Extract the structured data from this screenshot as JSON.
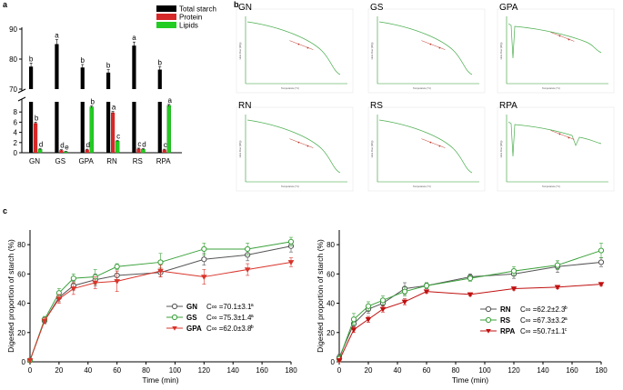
{
  "panel_labels": {
    "a": "a",
    "b": "b",
    "c": "c"
  },
  "colors": {
    "black": "#000000",
    "red": "#d62828",
    "green": "#22cc22",
    "dsc": "#4caf50",
    "dsc_fit": "#c0392b",
    "grey_line": "#555555",
    "red_curve": "#d9342b",
    "green_curve": "#3aa13a",
    "darkred_curve": "#c01010"
  },
  "chart_data": [
    {
      "id": "panel-a",
      "type": "bar",
      "title": "",
      "categories": [
        "GN",
        "GS",
        "GPA",
        "RN",
        "RS",
        "RPA"
      ],
      "series": [
        {
          "name": "Total starch",
          "color": "#000000",
          "values": [
            77.5,
            85.0,
            77.2,
            75.5,
            84.5,
            76.5
          ],
          "errors": [
            1.2,
            1.5,
            1.0,
            1.0,
            1.2,
            1.0
          ],
          "letters": [
            "b",
            "a",
            "b",
            "b",
            "a",
            "b"
          ]
        },
        {
          "name": "Protein",
          "color": "#d62828",
          "values": [
            5.8,
            0.5,
            0.6,
            7.9,
            0.8,
            0.6
          ],
          "errors": [
            0.2,
            0.1,
            0.1,
            0.2,
            0.1,
            0.1
          ],
          "letters": [
            "b",
            "d",
            "d",
            "a",
            "c",
            "c"
          ]
        },
        {
          "name": "Lipids",
          "color": "#22cc22",
          "values": [
            0.7,
            0.2,
            9.0,
            2.3,
            0.7,
            9.3
          ],
          "errors": [
            0.1,
            0.05,
            0.2,
            0.1,
            0.1,
            0.2
          ],
          "letters": [
            "d",
            "e",
            "b",
            "c",
            "d",
            "a"
          ]
        }
      ],
      "axis_breaks": {
        "lower_range": [
          0,
          10
        ],
        "upper_range": [
          70,
          90
        ]
      },
      "yticks_lower": [
        0,
        2,
        4,
        6,
        8
      ],
      "yticks_upper": [
        70,
        80,
        90
      ],
      "legend_position": "top-right"
    },
    {
      "id": "panel-b",
      "type": "line",
      "description_type": "dsc_thumbnails",
      "thumbnails": [
        {
          "label": "GN",
          "shape": "smooth"
        },
        {
          "label": "GS",
          "shape": "smooth"
        },
        {
          "label": "GPA",
          "shape": "sharp-peak"
        },
        {
          "label": "RN",
          "shape": "smooth"
        },
        {
          "label": "RS",
          "shape": "smooth"
        },
        {
          "label": "RPA",
          "shape": "double-peak"
        }
      ],
      "xlabel": "Temperature (°C)",
      "ylabel": "Heat Flow (W/g)"
    },
    {
      "id": "panel-c-left",
      "type": "line",
      "xlabel": "Time (min)",
      "ylabel": "Digested proportion of starch (%)",
      "xlim": [
        0,
        180
      ],
      "ylim": [
        0,
        90
      ],
      "xticks": [
        0,
        20,
        40,
        60,
        80,
        100,
        120,
        140,
        160,
        180
      ],
      "yticks": [
        0,
        20,
        40,
        60,
        80
      ],
      "x": [
        0,
        10,
        20,
        30,
        45,
        60,
        90,
        120,
        150,
        180
      ],
      "series": [
        {
          "name": "GN",
          "marker": "circle",
          "color": "#555555",
          "values": [
            1,
            28,
            44,
            52,
            56,
            59,
            61,
            70,
            73,
            79
          ],
          "errors": [
            1,
            2,
            3,
            3,
            4,
            3,
            3,
            4,
            4,
            4
          ],
          "c_label": "GN",
          "c_value": "C∞ =70.1±3.1",
          "c_sup": "a"
        },
        {
          "name": "GS",
          "marker": "circle",
          "color": "#3aa13a",
          "values": [
            1,
            29,
            47,
            57,
            58,
            65,
            68,
            77,
            77,
            82
          ],
          "errors": [
            1,
            2,
            3,
            3,
            5,
            2,
            6,
            4,
            4,
            3
          ],
          "c_label": "GS",
          "c_value": "C∞ =75.3±1.4",
          "c_sup": "a"
        },
        {
          "name": "GPA",
          "marker": "triangle-down",
          "color": "#d9342b",
          "values": [
            1,
            28,
            43,
            50,
            54,
            55,
            62,
            58,
            63,
            68
          ],
          "errors": [
            1,
            2,
            3,
            4,
            4,
            7,
            4,
            5,
            4,
            3
          ],
          "c_label": "GPA",
          "c_value": "C∞ =62.0±3.8",
          "c_sup": "b"
        }
      ],
      "legend_position": "bottom-right"
    },
    {
      "id": "panel-c-right",
      "type": "line",
      "xlabel": "Time (min)",
      "ylabel": "Digested proportion of starch (%)",
      "xlim": [
        0,
        180
      ],
      "ylim": [
        0,
        90
      ],
      "xticks": [
        0,
        20,
        40,
        60,
        80,
        100,
        120,
        140,
        160,
        180
      ],
      "yticks": [
        0,
        20,
        40,
        60,
        80
      ],
      "x": [
        0,
        10,
        20,
        30,
        45,
        60,
        90,
        120,
        150,
        180
      ],
      "series": [
        {
          "name": "RN",
          "marker": "circle",
          "color": "#555555",
          "values": [
            3,
            26,
            36,
            40,
            50,
            52,
            58,
            60,
            65,
            68
          ],
          "errors": [
            2,
            4,
            3,
            3,
            4,
            2,
            2,
            3,
            4,
            3
          ],
          "c_label": "RN",
          "c_value": "C∞ =62.2±2.3",
          "c_sup": "b"
        },
        {
          "name": "RS",
          "marker": "circle",
          "color": "#3aa13a",
          "values": [
            2,
            29,
            38,
            42,
            48,
            52,
            57,
            62,
            66,
            76
          ],
          "errors": [
            2,
            4,
            3,
            3,
            3,
            2,
            2,
            3,
            3,
            5
          ],
          "c_label": "RS",
          "c_value": "C∞ =67.3±3.2",
          "c_sup": "a"
        },
        {
          "name": "RPA",
          "marker": "triangle-down",
          "color": "#c01010",
          "values": [
            1,
            22,
            29,
            36,
            41,
            48,
            46,
            50,
            51,
            53
          ],
          "errors": [
            1,
            2,
            2,
            2,
            2,
            1,
            1,
            1,
            1,
            1
          ],
          "c_label": "RPA",
          "c_value": "C∞ =50.7±1.1",
          "c_sup": "c"
        }
      ],
      "legend_position": "bottom-right"
    }
  ]
}
